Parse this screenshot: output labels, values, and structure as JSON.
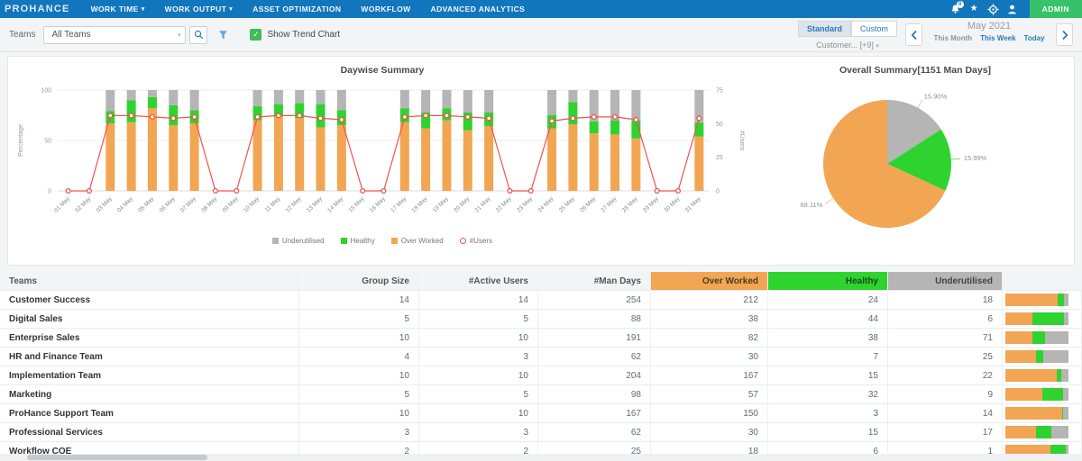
{
  "colors": {
    "nav_bg": "#1276bd",
    "admin_green": "#35c26a",
    "accent_blue": "#2a7ab9",
    "over_worked": "#f2a654",
    "healthy": "#2fd32f",
    "underutilised": "#b5b5b5",
    "users_line": "#f0524d"
  },
  "nav": {
    "logo": "PROHANCE",
    "items": [
      {
        "label": "WORK TIME",
        "caret": true
      },
      {
        "label": "WORK OUTPUT",
        "caret": true
      },
      {
        "label": "ASSET OPTIMIZATION",
        "caret": false
      },
      {
        "label": "WORKFLOW",
        "caret": false
      },
      {
        "label": "ADVANCED ANALYTICS",
        "caret": false
      }
    ],
    "bell_badge": "0",
    "admin_label": "ADMIN"
  },
  "toolbar": {
    "teams_label": "Teams",
    "teams_value": "All Teams",
    "show_trend_chart_label": "Show Trend Chart",
    "tabs": [
      {
        "label": "Standard",
        "active": true
      },
      {
        "label": "Custom",
        "active": false
      }
    ],
    "customer_filter": "Customer... [+9]",
    "period": "May 2021",
    "period_links": [
      {
        "label": "This Month",
        "style": "muted"
      },
      {
        "label": "This Week",
        "style": "active"
      },
      {
        "label": "Today",
        "style": "active"
      }
    ]
  },
  "chart_data": [
    {
      "type": "bar",
      "title": "Daywise Summary",
      "ylabel_left": "Percentage",
      "ylabel_right": "#Users",
      "y_left": {
        "min": 0,
        "max": 100,
        "ticks": [
          0,
          50,
          100
        ]
      },
      "y_right": {
        "min": 0,
        "max": 75,
        "ticks": [
          0,
          25,
          50,
          75
        ]
      },
      "grid": true,
      "legend_position": "bottom",
      "categories": [
        "01 May",
        "02 May",
        "03 May",
        "04 May",
        "05 May",
        "06 May",
        "07 May",
        "08 May",
        "09 May",
        "10 May",
        "11 May",
        "12 May",
        "13 May",
        "14 May",
        "15 May",
        "16 May",
        "17 May",
        "18 May",
        "19 May",
        "20 May",
        "21 May",
        "22 May",
        "23 May",
        "24 May",
        "25 May",
        "26 May",
        "27 May",
        "28 May",
        "29 May",
        "30 May",
        "31 May"
      ],
      "series": [
        {
          "name": "Over Worked",
          "type": "bar",
          "color": "over_worked",
          "values": [
            0,
            0,
            67,
            68,
            82,
            65,
            67,
            0,
            0,
            70,
            74,
            72,
            63,
            65,
            0,
            0,
            68,
            62,
            70,
            60,
            64,
            0,
            0,
            62,
            66,
            57,
            56,
            52,
            0,
            0,
            54
          ]
        },
        {
          "name": "Healthy",
          "type": "bar",
          "color": "healthy",
          "values": [
            0,
            0,
            12,
            22,
            11,
            20,
            13,
            0,
            0,
            14,
            12,
            15,
            23,
            15,
            0,
            0,
            14,
            16,
            12,
            18,
            14,
            0,
            0,
            13,
            22,
            12,
            14,
            18,
            0,
            0,
            14
          ]
        },
        {
          "name": "Underutilised",
          "type": "bar",
          "color": "underutilised",
          "values": [
            0,
            0,
            21,
            10,
            7,
            15,
            20,
            0,
            0,
            16,
            14,
            13,
            14,
            20,
            0,
            0,
            18,
            22,
            18,
            22,
            22,
            0,
            0,
            25,
            12,
            31,
            30,
            30,
            0,
            0,
            32
          ]
        },
        {
          "name": "#Users",
          "type": "line",
          "axis": "right",
          "color": "users_line",
          "values": [
            0,
            0,
            56,
            56,
            55,
            54,
            55,
            0,
            0,
            55,
            56,
            56,
            54,
            53,
            0,
            0,
            55,
            56,
            56,
            55,
            54,
            0,
            0,
            52,
            54,
            55,
            55,
            53,
            0,
            0,
            54
          ]
        }
      ],
      "legend": [
        {
          "label": "Underutilised",
          "swatch": "square",
          "color": "underutilised"
        },
        {
          "label": "Healthy",
          "swatch": "square",
          "color": "healthy"
        },
        {
          "label": "Over Worked",
          "swatch": "square",
          "color": "over_worked"
        },
        {
          "label": "#Users",
          "swatch": "circle",
          "color": "users_line"
        }
      ]
    },
    {
      "type": "pie",
      "title": "Overall Summary[1151 Man Days]",
      "total_label": "1151 Man Days",
      "slices": [
        {
          "name": "Underutilised",
          "value": 15.9,
          "label": "15.90%",
          "color": "underutilised"
        },
        {
          "name": "Healthy",
          "value": 15.99,
          "label": "15.99%",
          "color": "healthy"
        },
        {
          "name": "Over Worked",
          "value": 68.11,
          "label": "68.11%",
          "color": "over_worked"
        }
      ]
    }
  ],
  "table": {
    "headers": [
      "Teams",
      "Group Size",
      "#Active Users",
      "#Man Days",
      "Over Worked",
      "Healthy",
      "Underutilised",
      ""
    ],
    "rows": [
      [
        "Customer Success",
        14,
        14,
        254,
        212,
        24,
        18
      ],
      [
        "Digital Sales",
        5,
        5,
        88,
        38,
        44,
        6
      ],
      [
        "Enterprise Sales",
        10,
        10,
        191,
        82,
        38,
        71
      ],
      [
        "HR and Finance Team",
        4,
        3,
        62,
        30,
        7,
        25
      ],
      [
        "Implementation Team",
        10,
        10,
        204,
        167,
        15,
        22
      ],
      [
        "Marketing",
        5,
        5,
        98,
        57,
        32,
        9
      ],
      [
        "ProHance Support Team",
        10,
        10,
        167,
        150,
        3,
        14
      ],
      [
        "Professional Services",
        3,
        3,
        62,
        30,
        15,
        17
      ],
      [
        "Workflow COE",
        2,
        2,
        25,
        18,
        6,
        1
      ]
    ]
  }
}
